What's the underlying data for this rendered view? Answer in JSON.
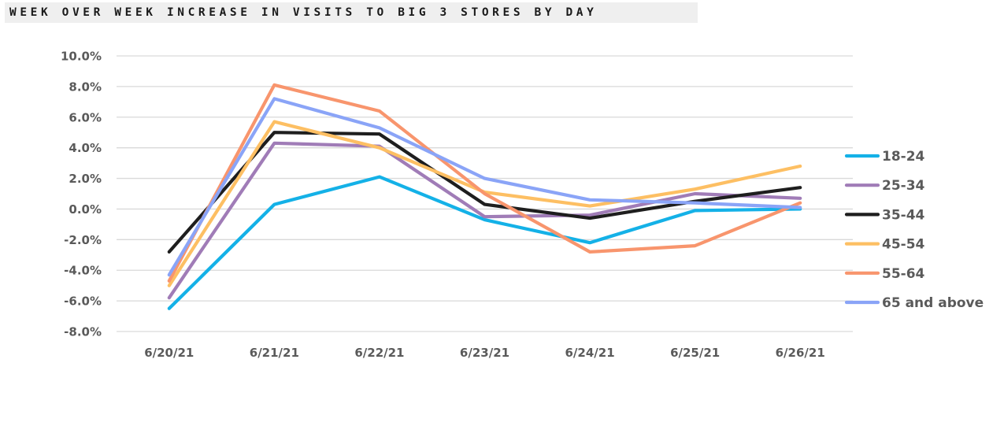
{
  "chart_data": {
    "type": "line",
    "title": "WEEK OVER WEEK INCREASE IN VISITS TO BIG 3 STORES BY DAY",
    "categories": [
      "6/20/21",
      "6/21/21",
      "6/22/21",
      "6/23/21",
      "6/24/21",
      "6/25/21",
      "6/26/21"
    ],
    "ylim": [
      -8.0,
      10.0
    ],
    "yticks": [
      "10.0%",
      "8.0%",
      "6.0%",
      "4.0%",
      "2.0%",
      "0.0%",
      "-2.0%",
      "-4.0%",
      "-6.0%",
      "-8.0%"
    ],
    "grid": true,
    "legend_position": "right",
    "series": [
      {
        "name": "18-24",
        "color": "#14b1e7",
        "values": [
          -6.5,
          0.3,
          2.1,
          -0.7,
          -2.2,
          -0.1,
          0.0
        ]
      },
      {
        "name": "25-34",
        "color": "#a07cb7",
        "values": [
          -5.8,
          4.3,
          4.1,
          -0.5,
          -0.4,
          1.0,
          0.7
        ]
      },
      {
        "name": "35-44",
        "color": "#1e1e1e",
        "values": [
          -2.8,
          5.0,
          4.9,
          0.3,
          -0.6,
          0.5,
          1.4
        ]
      },
      {
        "name": "45-54",
        "color": "#fdbf63",
        "values": [
          -5.0,
          5.7,
          4.0,
          1.1,
          0.2,
          1.3,
          2.8
        ]
      },
      {
        "name": "55-64",
        "color": "#f8956d",
        "values": [
          -4.7,
          8.1,
          6.4,
          1.0,
          -2.8,
          -2.4,
          0.4
        ]
      },
      {
        "name": "65 and above",
        "color": "#8aa4f7",
        "values": [
          -4.3,
          7.2,
          5.3,
          2.0,
          0.6,
          0.4,
          0.1
        ]
      }
    ]
  }
}
